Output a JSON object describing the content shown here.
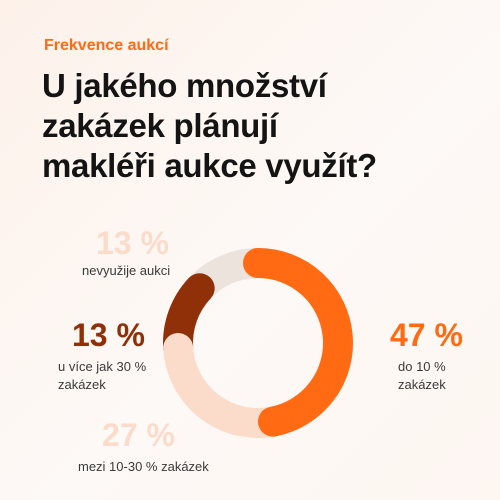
{
  "header": {
    "kicker": "Frekvence aukcí",
    "title_lines": [
      "U jakého množství",
      "zakázek plánují",
      "makléři aukce využít?"
    ]
  },
  "colors": {
    "accent": "#ff6a13",
    "dark": "#8f3008",
    "light": "#fbdccb",
    "pale": "#ece3dd"
  },
  "chart_data": {
    "type": "pie",
    "title": "U jakého množství zakázek plánují makléři aukce využít?",
    "slices": [
      {
        "label": "do 10 % zakázek",
        "value": 47,
        "display": "47 %",
        "color": "#ff6a13"
      },
      {
        "label": "mezi 10-30 % zakázek",
        "value": 27,
        "display": "27 %",
        "color": "#fbdccb"
      },
      {
        "label": "u více jak 30 % zakázek",
        "value": 13,
        "display": "13 %",
        "color": "#8f3008"
      },
      {
        "label": "nevyužije aukci",
        "value": 13,
        "display": "13 %",
        "color": "#ece3dd"
      }
    ]
  }
}
